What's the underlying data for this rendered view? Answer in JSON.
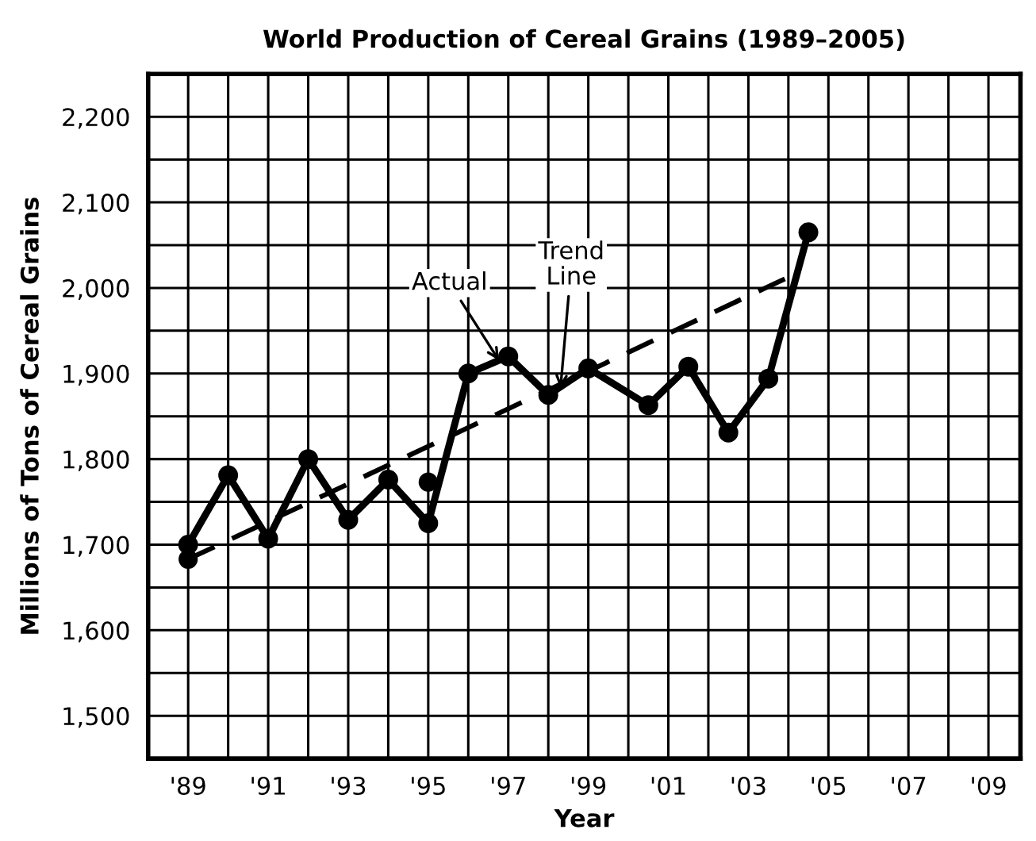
{
  "chart_data": {
    "type": "line",
    "title": "World Production of Cereal Grains (1989–2005)",
    "xlabel": "Year",
    "ylabel": "Millions of Tons of Cereal Grains",
    "series": [
      {
        "color": "#000000",
        "marker": "circle",
        "line_style": "solid",
        "x": [
          1989,
          1990,
          1991,
          1992,
          1993,
          1994,
          1995,
          1996,
          1997,
          1998,
          1999,
          2000.5,
          2001.5,
          2002.5,
          2003.5,
          2004.5
        ],
        "values": [
          1700,
          1781,
          1707,
          1800,
          1729,
          1776,
          1725,
          1900,
          1920,
          1875,
          1906,
          1863,
          1908,
          1831,
          1894,
          2065
        ]
      },
      {
        "type": "line",
        "color": "#000000",
        "marker": "none",
        "line_style": "dashed",
        "x": [
          1989,
          2004.2
        ],
        "values": [
          1683,
          2017
        ]
      },
      {
        "type": "scatter",
        "color": "#000000",
        "marker": "circle",
        "x": [
          1989,
          1995
        ],
        "values": [
          1683,
          1773
        ]
      }
    ],
    "annotations": [
      {
        "text": "Actual",
        "x": 1996.8,
        "y": 1913
      },
      {
        "text": "Trend\nLine",
        "x": 1998.3,
        "y": 1880
      }
    ],
    "xlim": [
      1988,
      2009.8
    ],
    "ylim": [
      1450,
      2250
    ],
    "xticks": [
      {
        "value": 1989,
        "label": "'89"
      },
      {
        "value": 1990,
        "label": null
      },
      {
        "value": 1991,
        "label": "'91"
      },
      {
        "value": 1992,
        "label": null
      },
      {
        "value": 1993,
        "label": "'93"
      },
      {
        "value": 1994,
        "label": null
      },
      {
        "value": 1995,
        "label": "'95"
      },
      {
        "value": 1996,
        "label": null
      },
      {
        "value": 1997,
        "label": "'97"
      },
      {
        "value": 1998,
        "label": null
      },
      {
        "value": 1999,
        "label": "'99"
      },
      {
        "value": 2000,
        "label": null
      },
      {
        "value": 2001,
        "label": "'01"
      },
      {
        "value": 2002,
        "label": null
      },
      {
        "value": 2003,
        "label": "'03"
      },
      {
        "value": 2004,
        "label": null
      },
      {
        "value": 2005,
        "label": "'05"
      },
      {
        "value": 2006,
        "label": null
      },
      {
        "value": 2007,
        "label": "'07"
      },
      {
        "value": 2008,
        "label": null
      },
      {
        "value": 2009,
        "label": "'09"
      }
    ],
    "yticks": [
      {
        "value": 1500,
        "label": "1,500"
      },
      {
        "value": 1550,
        "label": null
      },
      {
        "value": 1600,
        "label": "1,600"
      },
      {
        "value": 1650,
        "label": null
      },
      {
        "value": 1700,
        "label": "1,700"
      },
      {
        "value": 1750,
        "label": null
      },
      {
        "value": 1800,
        "label": "1,800"
      },
      {
        "value": 1850,
        "label": null
      },
      {
        "value": 1900,
        "label": "1,900"
      },
      {
        "value": 1950,
        "label": null
      },
      {
        "value": 2000,
        "label": "2,000"
      },
      {
        "value": 2050,
        "label": null
      },
      {
        "value": 2100,
        "label": "2,100"
      },
      {
        "value": 2150,
        "label": null
      },
      {
        "value": 2200,
        "label": "2,200"
      }
    ],
    "grid": true
  }
}
